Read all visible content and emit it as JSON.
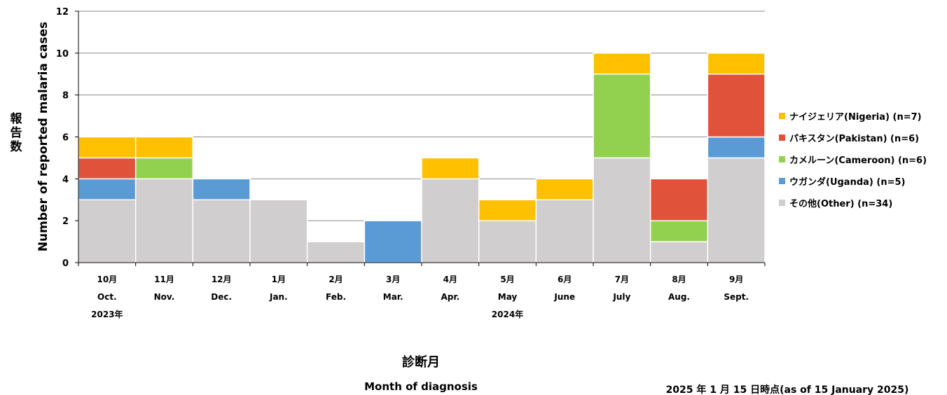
{
  "chart_data": {
    "type": "bar",
    "stacked": true,
    "categories": [
      {
        "jp": "10月",
        "en": "Oct.",
        "year": "2023年"
      },
      {
        "jp": "11月",
        "en": "Nov.",
        "year": ""
      },
      {
        "jp": "12月",
        "en": "Dec.",
        "year": ""
      },
      {
        "jp": "1月",
        "en": "Jan.",
        "year": ""
      },
      {
        "jp": "2月",
        "en": "Feb.",
        "year": ""
      },
      {
        "jp": "3月",
        "en": "Mar.",
        "year": ""
      },
      {
        "jp": "4月",
        "en": "Apr.",
        "year": ""
      },
      {
        "jp": "5月",
        "en": "May",
        "year": "2024年"
      },
      {
        "jp": "6月",
        "en": "June",
        "year": ""
      },
      {
        "jp": "7月",
        "en": "July",
        "year": ""
      },
      {
        "jp": "8月",
        "en": "Aug.",
        "year": ""
      },
      {
        "jp": "9月",
        "en": "Sept.",
        "year": ""
      }
    ],
    "series": [
      {
        "name": "その他(Other) (n=34)",
        "color": "#d0cece",
        "values": [
          3,
          4,
          3,
          3,
          1,
          0,
          4,
          2,
          3,
          5,
          1,
          5
        ]
      },
      {
        "name": "ウガンダ(Uganda) (n=5)",
        "color": "#5b9bd5",
        "values": [
          1,
          0,
          1,
          0,
          0,
          2,
          0,
          0,
          0,
          0,
          0,
          1
        ]
      },
      {
        "name": "カメルーン(Cameroon) (n=6)",
        "color": "#92d050",
        "values": [
          0,
          1,
          0,
          0,
          0,
          0,
          0,
          0,
          0,
          4,
          1,
          0
        ]
      },
      {
        "name": "パキスタン(Pakistan) (n=6)",
        "color": "#e0533a",
        "values": [
          1,
          0,
          0,
          0,
          0,
          0,
          0,
          0,
          0,
          0,
          2,
          3
        ]
      },
      {
        "name": "ナイジェリア(Nigeria) (n=7)",
        "color": "#ffc000",
        "values": [
          1,
          1,
          0,
          0,
          0,
          0,
          1,
          1,
          1,
          1,
          0,
          1
        ]
      }
    ],
    "legend_order": [
      4,
      3,
      2,
      1,
      0
    ],
    "legend_position": "right",
    "ylim": [
      0,
      12
    ],
    "yticks": [
      0,
      2,
      4,
      6,
      8,
      10,
      12
    ],
    "ylabel_jp": "報告数",
    "ylabel": "Number of reported malaria cases",
    "xlabel_jp": "診断月",
    "xlabel": "Month of diagnosis",
    "grid": true
  },
  "note": "2025 年 1 月 15 日時点(as of 15 January 2025)"
}
